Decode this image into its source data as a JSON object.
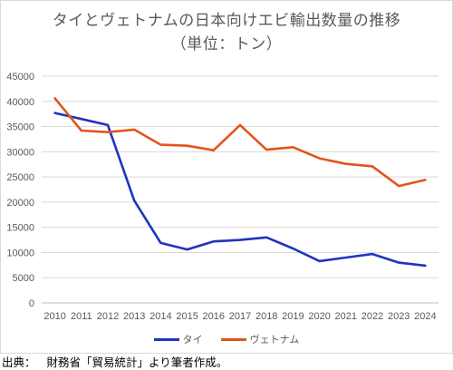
{
  "chart_data": {
    "type": "line",
    "title": "タイとヴェトナムの日本向けエビ輸出数量の推移",
    "subtitle": "（単位：トン）",
    "categories": [
      "2010",
      "2011",
      "2012",
      "2013",
      "2014",
      "2015",
      "2016",
      "2017",
      "2018",
      "2019",
      "2020",
      "2021",
      "2022",
      "2023",
      "2024"
    ],
    "series": [
      {
        "name": "タイ",
        "color": "#2034c0",
        "values": [
          37700,
          36500,
          35300,
          20300,
          11900,
          10600,
          12200,
          12500,
          13000,
          10800,
          8300,
          9000,
          9700,
          8000,
          7400
        ]
      },
      {
        "name": "ヴェトナム",
        "color": "#e4541d",
        "values": [
          40600,
          34200,
          33900,
          34400,
          31400,
          31200,
          30300,
          35300,
          30400,
          30900,
          28700,
          27600,
          27100,
          23200,
          24400
        ]
      }
    ],
    "ylim": [
      0,
      45000
    ],
    "yticks": [
      "45000",
      "40000",
      "35000",
      "30000",
      "25000",
      "20000",
      "15000",
      "10000",
      "5000",
      "0"
    ],
    "grid": true,
    "legend_position": "bottom"
  },
  "source": {
    "label": "出典：",
    "text": "財務省「貿易統計」より筆者作成。"
  }
}
